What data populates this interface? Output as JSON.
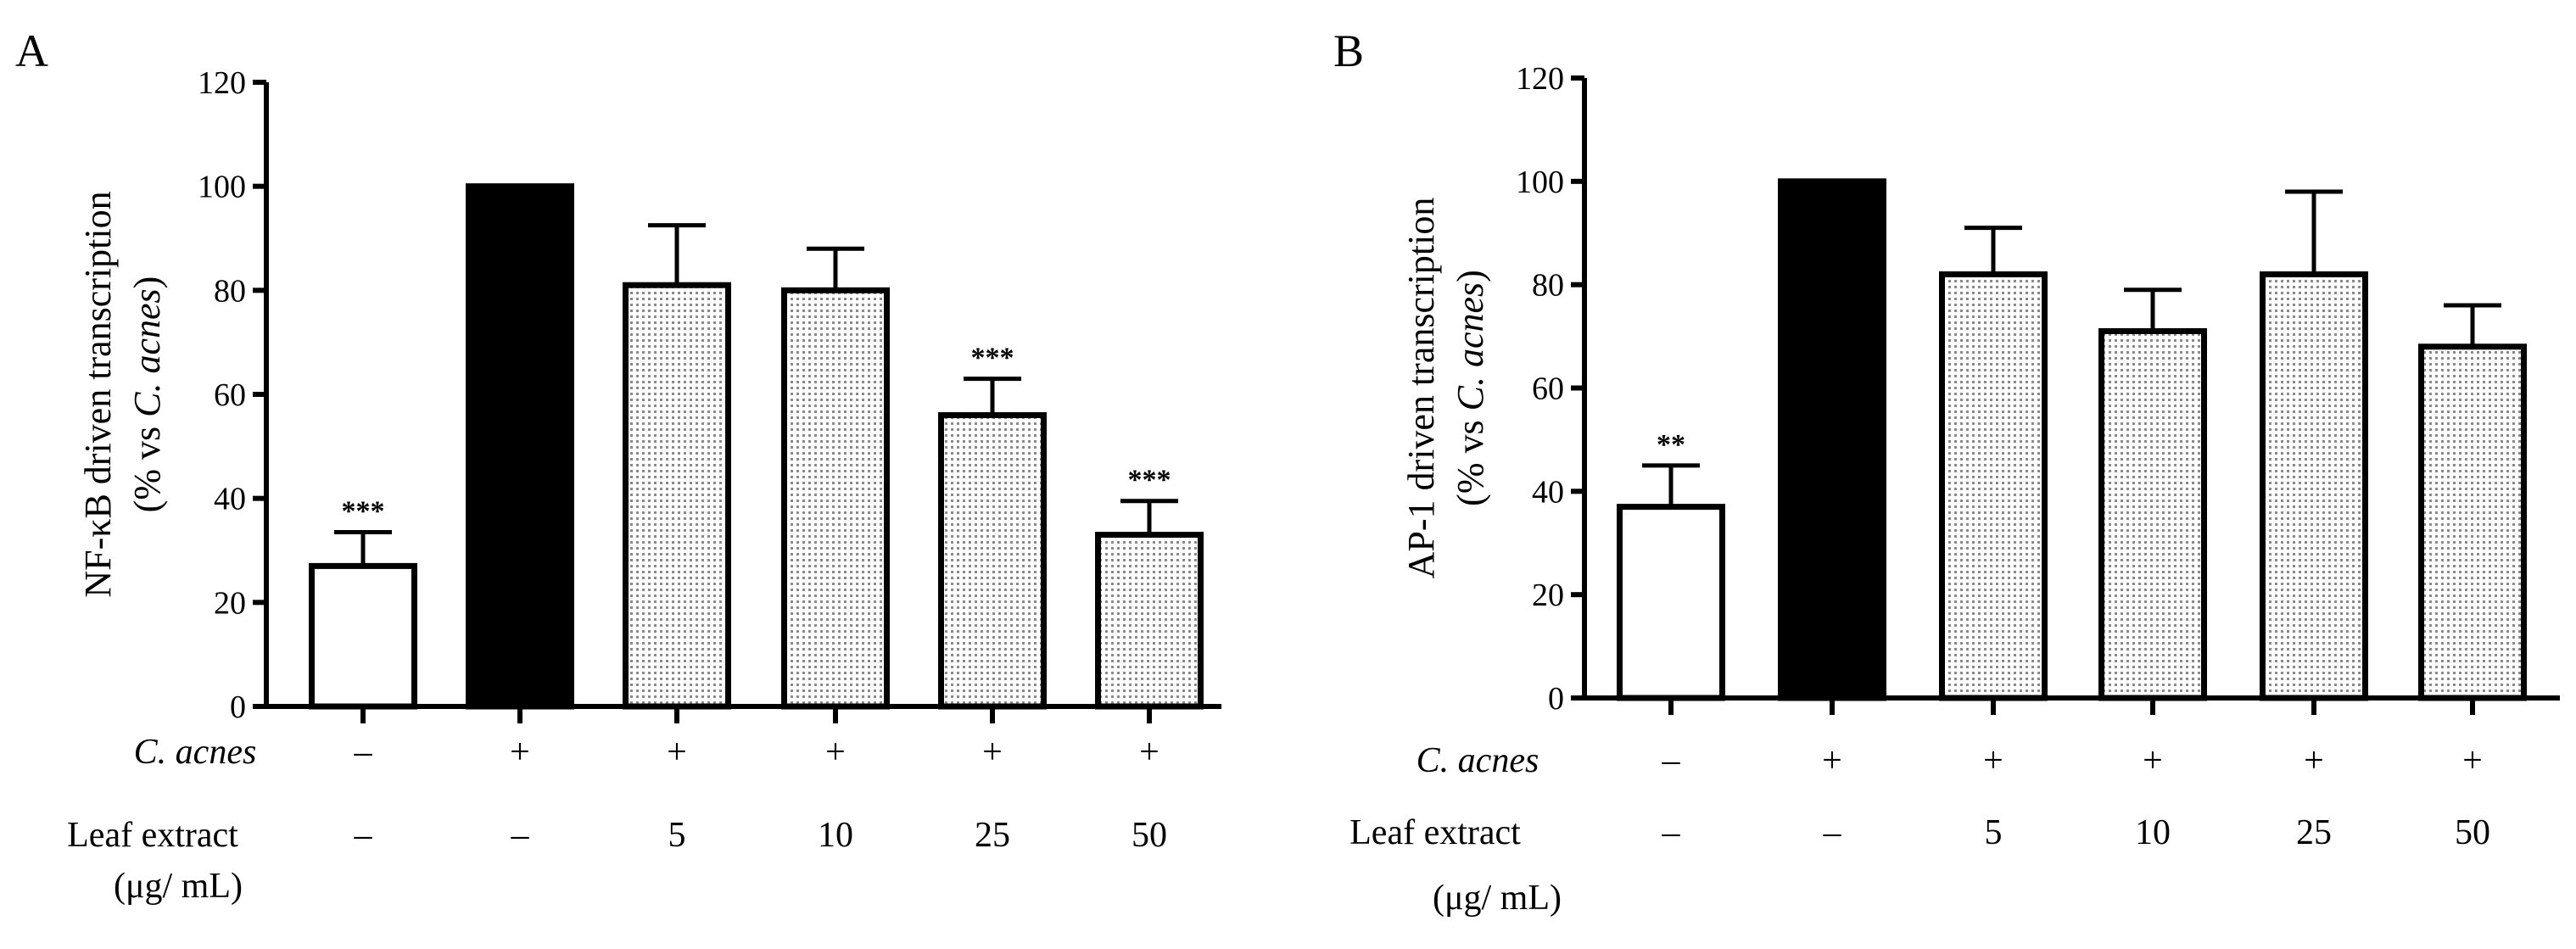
{
  "chart_data": [
    {
      "type": "bar",
      "panel_label": "A",
      "ylabel_line1": "NF-κB driven transcription",
      "ylabel_line2_prefix": "(% vs ",
      "ylabel_line2_italic": "C. acnes",
      "ylabel_line2_suffix": ")",
      "ylim": [
        0,
        120
      ],
      "yticks": [
        "0",
        "20",
        "40",
        "60",
        "80",
        "100",
        "120"
      ],
      "values": [
        27,
        100,
        81,
        80,
        56,
        33
      ],
      "errors": [
        6.5,
        0,
        11.5,
        8,
        7,
        6.5
      ],
      "significance": [
        "***",
        "",
        "",
        "",
        "***",
        "***"
      ],
      "fills": [
        "white",
        "black",
        "dotted",
        "dotted",
        "dotted",
        "dotted"
      ],
      "c_acnes_label": "C. acnes",
      "c_acnes": [
        "–",
        "+",
        "+",
        "+",
        "+",
        "+"
      ],
      "extract_label_line1": "Leaf extract",
      "extract_label_line2": "(μg/ mL)",
      "extract": [
        "–",
        "–",
        "5",
        "10",
        "25",
        "50"
      ]
    },
    {
      "type": "bar",
      "panel_label": "B",
      "ylabel_line1": "AP-1 driven transcription",
      "ylabel_line2_prefix": "(% vs ",
      "ylabel_line2_italic": "C. acnes",
      "ylabel_line2_suffix": ")",
      "ylim": [
        0,
        120
      ],
      "yticks": [
        "0",
        "20",
        "40",
        "60",
        "80",
        "100",
        "120"
      ],
      "values": [
        37,
        100,
        82,
        71,
        82,
        68
      ],
      "errors": [
        8,
        0,
        9,
        8,
        16,
        8
      ],
      "significance": [
        "**",
        "",
        "",
        "",
        "",
        ""
      ],
      "fills": [
        "white",
        "black",
        "dotted",
        "dotted",
        "dotted",
        "dotted"
      ],
      "c_acnes_label": "C. acnes",
      "c_acnes": [
        "–",
        "+",
        "+",
        "+",
        "+",
        "+"
      ],
      "extract_label_line1": "Leaf extract",
      "extract_label_line2": "(μg/ mL)",
      "extract": [
        "–",
        "–",
        "5",
        "10",
        "25",
        "50"
      ]
    }
  ]
}
